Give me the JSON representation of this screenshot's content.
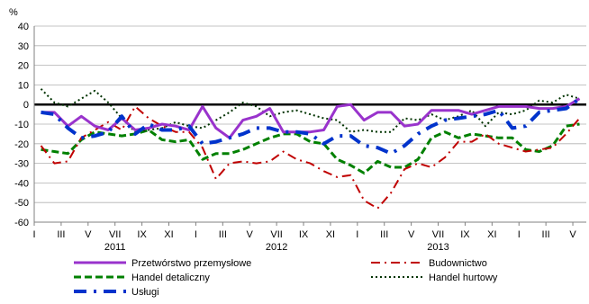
{
  "chart_data": {
    "type": "line",
    "ylabel": "%",
    "ylim": [
      -60,
      40
    ],
    "yticks": [
      40,
      30,
      20,
      10,
      0,
      -10,
      -20,
      -30,
      -40,
      -50,
      -60
    ],
    "xtick_labels": [
      "I",
      "III",
      "V",
      "VII",
      "IX",
      "XI",
      "I",
      "III",
      "V",
      "VII",
      "IX",
      "XI",
      "I",
      "III",
      "V",
      "VII",
      "IX",
      "XI",
      "I",
      "III",
      "V"
    ],
    "year_labels": [
      {
        "label": "2011",
        "index": 6
      },
      {
        "label": "2012",
        "index": 18
      },
      {
        "label": "2013",
        "index": 30
      }
    ],
    "grid": true,
    "legend_position": "bottom",
    "series": [
      {
        "name": "Przetwórstwo przemysłowe",
        "color": "#9933CC",
        "style": "solid",
        "values": [
          -4,
          -4,
          -11,
          -6,
          -11,
          -13,
          -7,
          -13,
          -12,
          -10,
          -11,
          -13,
          -1,
          -12,
          -17,
          -8,
          -6,
          -2,
          -14,
          -14,
          -14,
          -13,
          -1,
          0,
          -8,
          -4,
          -4,
          -11,
          -10,
          -3,
          -3,
          -3,
          -5,
          -3,
          -1,
          -1,
          -1,
          -2,
          -2,
          -1,
          3
        ]
      },
      {
        "name": "Budownictwo",
        "color": "#C00000",
        "style": "dashdot",
        "values": [
          -21,
          -30,
          -29,
          -17,
          -13,
          -9,
          -13,
          -1,
          -7,
          -11,
          -14,
          -14,
          -22,
          -38,
          -30,
          -29,
          -30,
          -29,
          -24,
          -28,
          -30,
          -34,
          -37,
          -36,
          -49,
          -53,
          -45,
          -33,
          -30,
          -32,
          -27,
          -19,
          -19,
          -15,
          -20,
          -22,
          -24,
          -23,
          -22,
          -15,
          -7
        ]
      },
      {
        "name": "Handel detaliczny",
        "color": "#008000",
        "style": "dashed",
        "values": [
          -23,
          -24,
          -25,
          -18,
          -14,
          -15,
          -16,
          -15,
          -13,
          -18,
          -19,
          -18,
          -28,
          -25,
          -25,
          -23,
          -20,
          -17,
          -15,
          -15,
          -19,
          -20,
          -28,
          -31,
          -35,
          -29,
          -32,
          -32,
          -28,
          -17,
          -14,
          -17,
          -15,
          -16,
          -17,
          -17,
          -23,
          -24,
          -21,
          -11,
          -10
        ]
      },
      {
        "name": "Handel hurtowy",
        "color": "#003300",
        "style": "dotted",
        "values": [
          8,
          1,
          -1,
          3,
          7,
          1,
          -7,
          -14,
          -13,
          -12,
          -9,
          -11,
          -12,
          -8,
          -4,
          1,
          -1,
          -6,
          -4,
          -3,
          -5,
          -7,
          -8,
          -14,
          -13,
          -14,
          -14,
          -7,
          -8,
          -5,
          -8,
          -6,
          -3,
          -11,
          -4,
          -5,
          -3,
          2,
          1,
          5,
          3
        ]
      },
      {
        "name": "Usługi",
        "color": "#0033CC",
        "style": "longdashdot",
        "values": [
          -4,
          -5,
          -12,
          -17,
          -16,
          -14,
          -6,
          -15,
          -10,
          -13,
          -13,
          -11,
          -20,
          -19,
          -17,
          -15,
          -12,
          -12,
          -14,
          -14,
          -15,
          -20,
          -16,
          -16,
          -21,
          -22,
          -25,
          -21,
          -15,
          -11,
          -8,
          -7,
          -6,
          -5,
          -3,
          -12,
          -11,
          -4,
          -3,
          -2,
          3
        ]
      }
    ]
  }
}
